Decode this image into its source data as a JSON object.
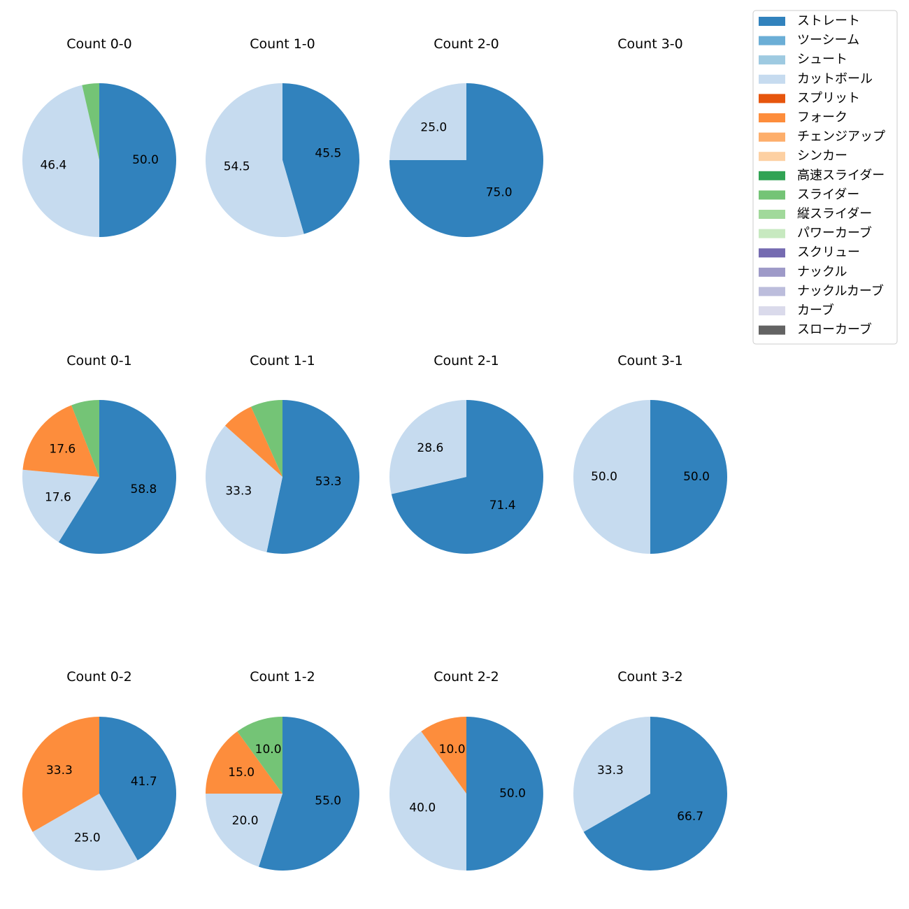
{
  "chart_data": {
    "type": "pie",
    "legend_position": "top-right",
    "legend": [
      {
        "name": "ストレート",
        "color": "#3182bd"
      },
      {
        "name": "ツーシーム",
        "color": "#6baed6"
      },
      {
        "name": "シュート",
        "color": "#9ecae1"
      },
      {
        "name": "カットボール",
        "color": "#c6dbef"
      },
      {
        "name": "スプリット",
        "color": "#e6550d"
      },
      {
        "name": "フォーク",
        "color": "#fd8d3c"
      },
      {
        "name": "チェンジアップ",
        "color": "#fdae6b"
      },
      {
        "name": "シンカー",
        "color": "#fdd0a2"
      },
      {
        "name": "高速スライダー",
        "color": "#31a354"
      },
      {
        "name": "スライダー",
        "color": "#74c476"
      },
      {
        "name": "縦スライダー",
        "color": "#a1d99b"
      },
      {
        "name": "パワーカーブ",
        "color": "#c7e9c0"
      },
      {
        "name": "スクリュー",
        "color": "#756bb1"
      },
      {
        "name": "ナックル",
        "color": "#9e9ac8"
      },
      {
        "name": "ナックルカーブ",
        "color": "#bcbddc"
      },
      {
        "name": "カーブ",
        "color": "#dadaeb"
      },
      {
        "name": "スローカーブ",
        "color": "#636363"
      }
    ],
    "charts": [
      {
        "title": "Count 0-0",
        "slices": [
          {
            "pitch": "ストレート",
            "value": 50.0,
            "label": "50.0"
          },
          {
            "pitch": "カットボール",
            "value": 46.4,
            "label": "46.4"
          },
          {
            "pitch": "スライダー",
            "value": 3.6,
            "label": ""
          }
        ]
      },
      {
        "title": "Count 1-0",
        "slices": [
          {
            "pitch": "ストレート",
            "value": 45.5,
            "label": "45.5"
          },
          {
            "pitch": "カットボール",
            "value": 54.5,
            "label": "54.5"
          }
        ]
      },
      {
        "title": "Count 2-0",
        "slices": [
          {
            "pitch": "ストレート",
            "value": 75.0,
            "label": "75.0"
          },
          {
            "pitch": "カットボール",
            "value": 25.0,
            "label": "25.0"
          }
        ]
      },
      {
        "title": "Count 3-0",
        "slices": []
      },
      {
        "title": "Count 0-1",
        "slices": [
          {
            "pitch": "ストレート",
            "value": 58.8,
            "label": "58.8"
          },
          {
            "pitch": "カットボール",
            "value": 17.6,
            "label": "17.6"
          },
          {
            "pitch": "フォーク",
            "value": 17.6,
            "label": "17.6"
          },
          {
            "pitch": "スライダー",
            "value": 5.9,
            "label": ""
          }
        ]
      },
      {
        "title": "Count 1-1",
        "slices": [
          {
            "pitch": "ストレート",
            "value": 53.3,
            "label": "53.3"
          },
          {
            "pitch": "カットボール",
            "value": 33.3,
            "label": "33.3"
          },
          {
            "pitch": "フォーク",
            "value": 6.7,
            "label": ""
          },
          {
            "pitch": "スライダー",
            "value": 6.7,
            "label": ""
          }
        ]
      },
      {
        "title": "Count 2-1",
        "slices": [
          {
            "pitch": "ストレート",
            "value": 71.4,
            "label": "71.4"
          },
          {
            "pitch": "カットボール",
            "value": 28.6,
            "label": "28.6"
          }
        ]
      },
      {
        "title": "Count 3-1",
        "slices": [
          {
            "pitch": "ストレート",
            "value": 50.0,
            "label": "50.0"
          },
          {
            "pitch": "カットボール",
            "value": 50.0,
            "label": "50.0"
          }
        ]
      },
      {
        "title": "Count 0-2",
        "slices": [
          {
            "pitch": "ストレート",
            "value": 41.7,
            "label": "41.7"
          },
          {
            "pitch": "カットボール",
            "value": 25.0,
            "label": "25.0"
          },
          {
            "pitch": "フォーク",
            "value": 33.3,
            "label": "33.3"
          }
        ]
      },
      {
        "title": "Count 1-2",
        "slices": [
          {
            "pitch": "ストレート",
            "value": 55.0,
            "label": "55.0"
          },
          {
            "pitch": "カットボール",
            "value": 20.0,
            "label": "20.0"
          },
          {
            "pitch": "フォーク",
            "value": 15.0,
            "label": "15.0"
          },
          {
            "pitch": "スライダー",
            "value": 10.0,
            "label": "10.0"
          }
        ]
      },
      {
        "title": "Count 2-2",
        "slices": [
          {
            "pitch": "ストレート",
            "value": 50.0,
            "label": "50.0"
          },
          {
            "pitch": "カットボール",
            "value": 40.0,
            "label": "40.0"
          },
          {
            "pitch": "フォーク",
            "value": 10.0,
            "label": "10.0"
          }
        ]
      },
      {
        "title": "Count 3-2",
        "slices": [
          {
            "pitch": "ストレート",
            "value": 66.7,
            "label": "66.7"
          },
          {
            "pitch": "カットボール",
            "value": 33.3,
            "label": "33.3"
          }
        ]
      }
    ]
  }
}
